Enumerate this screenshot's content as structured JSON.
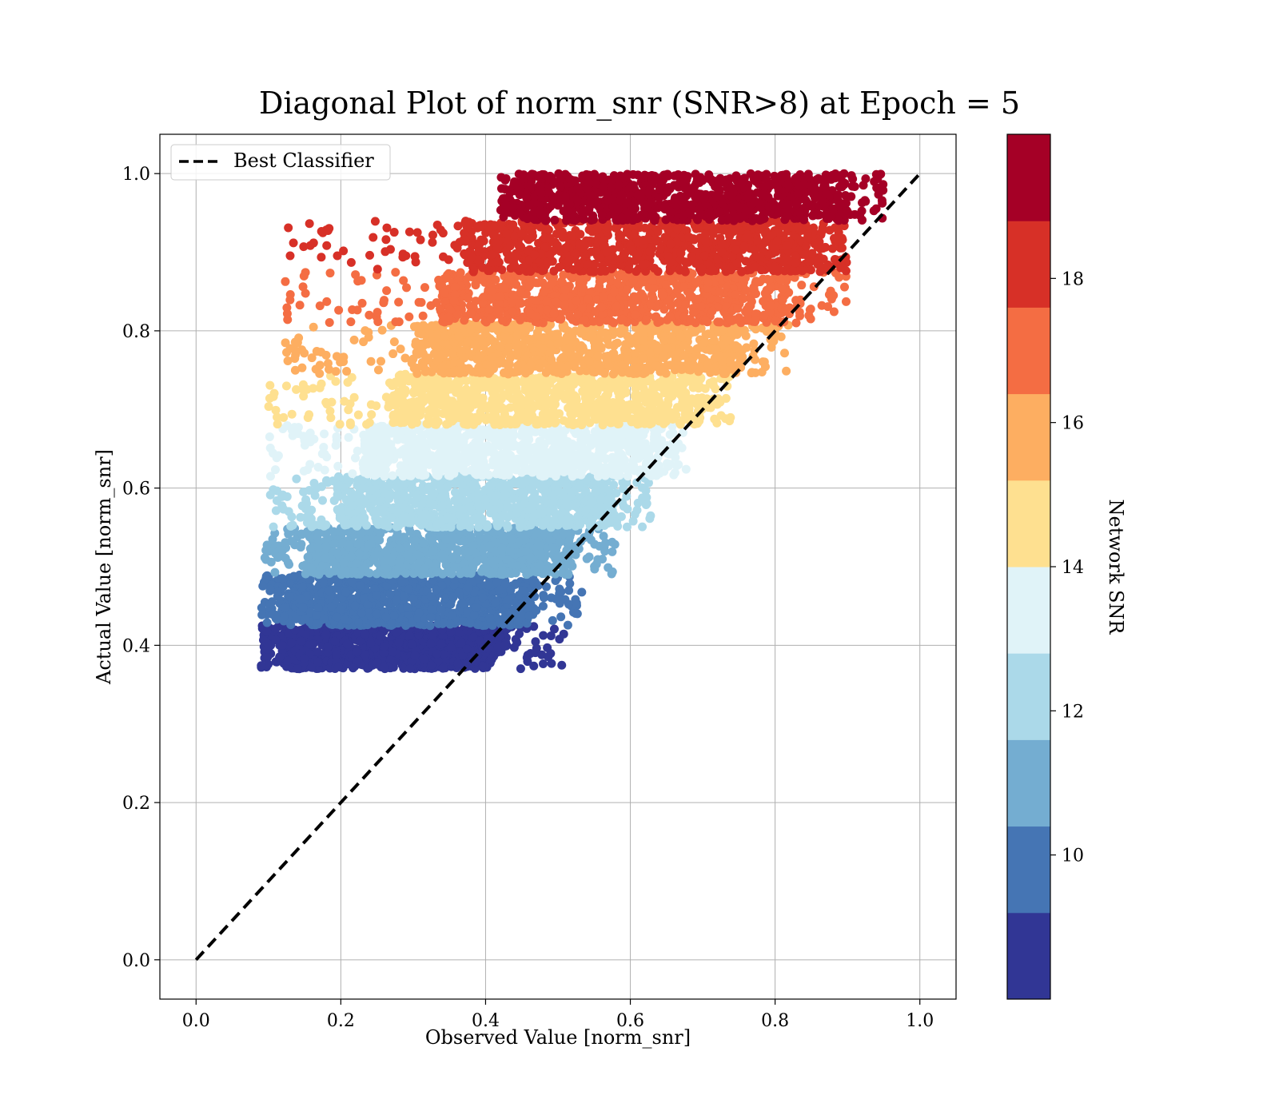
{
  "chart_data": {
    "type": "scatter",
    "title": "Diagonal Plot of norm_snr (SNR>8) at Epoch = 5",
    "xlabel": "Observed Value [norm_snr]",
    "ylabel": "Actual Value [norm_snr]",
    "xlim": [
      -0.05,
      1.05
    ],
    "ylim": [
      -0.05,
      1.05
    ],
    "xticks": [
      0.0,
      0.2,
      0.4,
      0.6,
      0.8,
      1.0
    ],
    "yticks": [
      0.0,
      0.2,
      0.4,
      0.6,
      0.8,
      1.0
    ],
    "xtick_labels": [
      "0.0",
      "0.2",
      "0.4",
      "0.6",
      "0.8",
      "1.0"
    ],
    "ytick_labels": [
      "0.0",
      "0.2",
      "0.4",
      "0.6",
      "0.8",
      "1.0"
    ],
    "grid": true,
    "legend": {
      "position": "upper-left",
      "entries": [
        "Best Classifier"
      ]
    },
    "reference_line": {
      "name": "Best Classifier",
      "style": "dashed",
      "color": "#000000",
      "x": [
        0.0,
        1.0
      ],
      "y": [
        0.0,
        1.0
      ]
    },
    "colorbar": {
      "label": "Network SNR",
      "range": [
        8,
        20
      ],
      "ticks": [
        10,
        12,
        14,
        16,
        18
      ],
      "tick_labels": [
        "10",
        "12",
        "14",
        "16",
        "18"
      ],
      "colors": [
        "#313695",
        "#4575b4",
        "#74add1",
        "#abd9e9",
        "#e0f3f8",
        "#fee090",
        "#fdae61",
        "#f46d43",
        "#d73027",
        "#a50026"
      ]
    },
    "bands": [
      {
        "snr": [
          8.0,
          9.2
        ],
        "color": "#313695",
        "y": [
          0.37,
          0.425
        ],
        "x_min": 0.09,
        "x_max_core": 0.43,
        "x_max_tail": 0.51
      },
      {
        "snr": [
          9.2,
          10.4
        ],
        "color": "#4575b4",
        "y": [
          0.425,
          0.49
        ],
        "x_min": 0.09,
        "x_max_core": 0.47,
        "x_max_tail": 0.54
      },
      {
        "snr": [
          10.4,
          11.6
        ],
        "color": "#74add1",
        "y": [
          0.49,
          0.55
        ],
        "x_min": 0.095,
        "x_max_core": 0.52,
        "x_max_tail": 0.58
      },
      {
        "snr": [
          11.6,
          12.8
        ],
        "color": "#abd9e9",
        "y": [
          0.55,
          0.615
        ],
        "x_min": 0.1,
        "x_max_core": 0.58,
        "x_max_tail": 0.63
      },
      {
        "snr": [
          12.8,
          14.0
        ],
        "color": "#e0f3f8",
        "y": [
          0.615,
          0.68
        ],
        "x_min": 0.1,
        "x_max_core": 0.64,
        "x_max_tail": 0.68
      },
      {
        "snr": [
          14.0,
          15.2
        ],
        "color": "#fee090",
        "y": [
          0.68,
          0.745
        ],
        "x_min": 0.1,
        "x_max_core": 0.7,
        "x_max_tail": 0.74
      },
      {
        "snr": [
          15.2,
          16.4
        ],
        "color": "#fdae61",
        "y": [
          0.745,
          0.81
        ],
        "x_min": 0.12,
        "x_max_core": 0.76,
        "x_max_tail": 0.82
      },
      {
        "snr": [
          16.4,
          17.6
        ],
        "color": "#f46d43",
        "y": [
          0.81,
          0.875
        ],
        "x_min": 0.12,
        "x_max_core": 0.82,
        "x_max_tail": 0.9
      },
      {
        "snr": [
          17.6,
          18.8
        ],
        "color": "#d73027",
        "y": [
          0.875,
          0.94
        ],
        "x_min": 0.12,
        "x_max_core": 0.87,
        "x_max_tail": 0.9
      },
      {
        "snr": [
          18.8,
          20.0
        ],
        "color": "#a50026",
        "y": [
          0.94,
          1.0
        ],
        "x_min": 0.42,
        "x_max_core": 0.9,
        "x_max_tail": 0.95
      }
    ]
  }
}
